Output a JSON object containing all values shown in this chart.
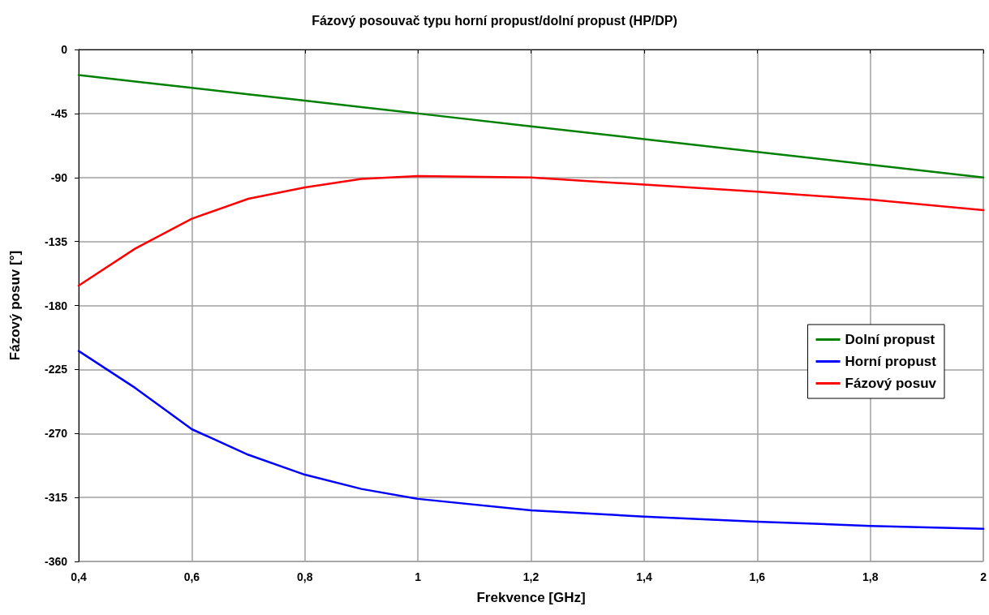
{
  "chart_data": {
    "type": "line",
    "title": "Fázový posouvač typu horní propust/dolní propust (HP/DP)",
    "xlabel": "Frekvence [GHz]",
    "ylabel": "Fázový posuv [°]",
    "x": [
      0.4,
      0.5,
      0.6,
      0.7,
      0.8,
      0.9,
      1.0,
      1.2,
      1.4,
      1.6,
      1.8,
      2.0
    ],
    "series": [
      {
        "name": "Dolní propust",
        "color": "#008000",
        "values": [
          -18,
          -22.5,
          -27,
          -31.5,
          -36,
          -40.5,
          -45,
          -54,
          -63,
          -72,
          -81,
          -90
        ]
      },
      {
        "name": "Horní propust",
        "color": "#0000ff",
        "values": [
          -212,
          -238,
          -267,
          -285,
          -299,
          -309,
          -316,
          -324,
          -328.5,
          -332,
          -335,
          -337
        ]
      },
      {
        "name": "Fázový posuv",
        "color": "#ff0000",
        "values": [
          -166,
          -140,
          -119,
          -105,
          -97,
          -91,
          -89,
          -90,
          -95,
          -100,
          -105.5,
          -113
        ]
      }
    ],
    "xlim": [
      0.4,
      2
    ],
    "xticks": [
      {
        "value": 0.4,
        "label": "0,4"
      },
      {
        "value": 0.6,
        "label": "0,6"
      },
      {
        "value": 0.8,
        "label": "0,8"
      },
      1,
      {
        "value": 1.2,
        "label": "1,2"
      },
      {
        "value": 1.4,
        "label": "1,4"
      },
      {
        "value": 1.6,
        "label": "1,6"
      },
      {
        "value": 1.8,
        "label": "1,8"
      },
      2
    ],
    "ylim": [
      -360,
      0
    ],
    "yticks": [
      -360,
      -315,
      -270,
      -225,
      -180,
      -135,
      -90,
      -45,
      0
    ],
    "grid": true,
    "legend": "right",
    "marker": "none",
    "line_style": "solid"
  }
}
